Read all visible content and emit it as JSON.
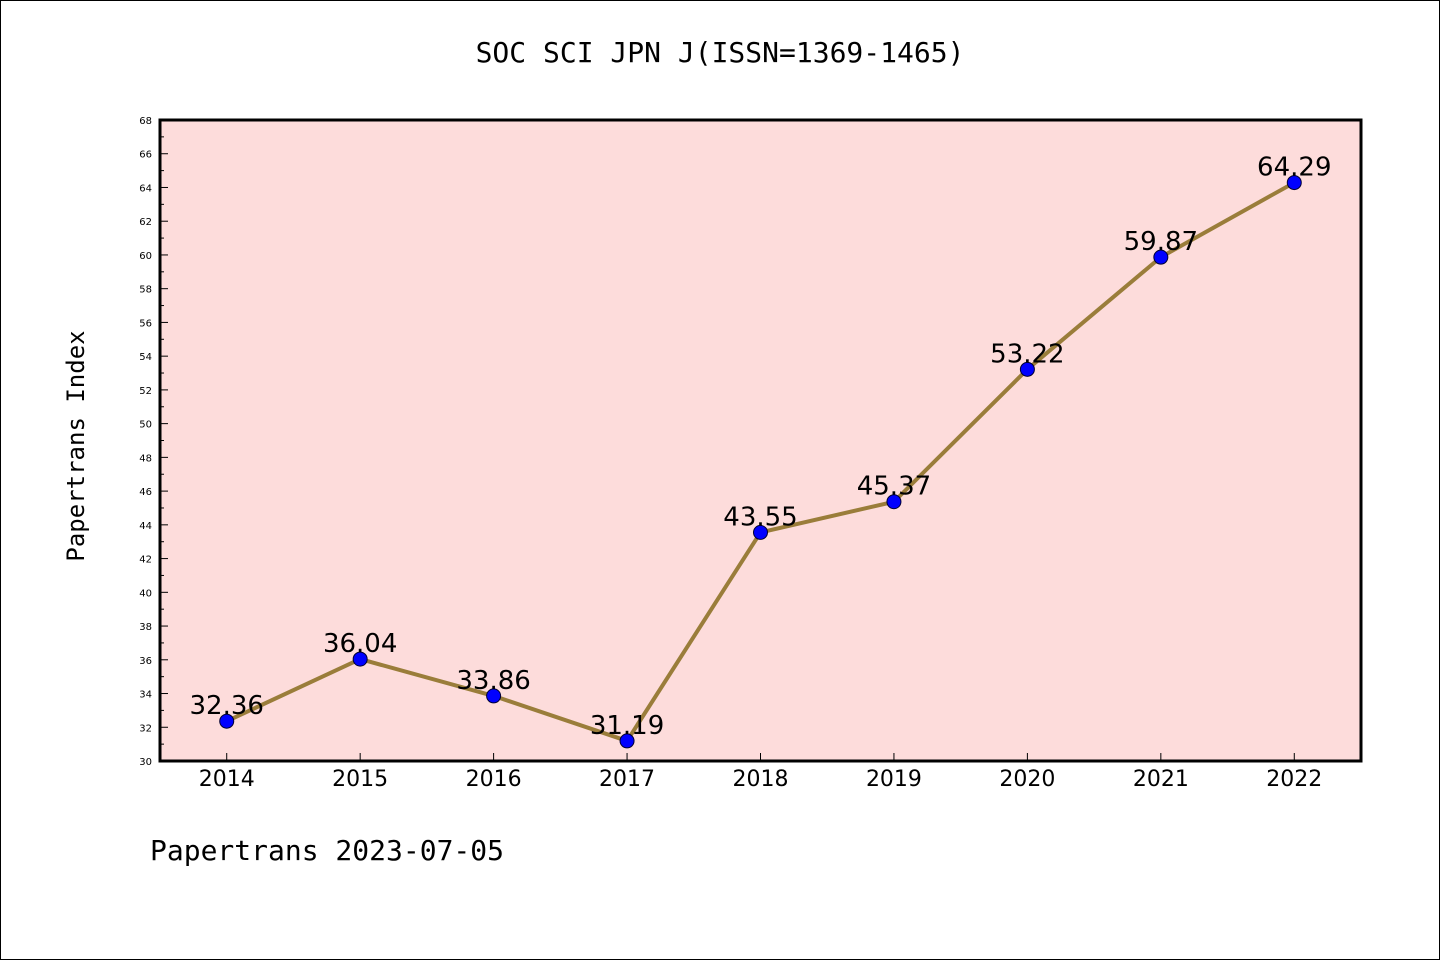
{
  "chart_data": {
    "type": "line",
    "title": "SOC SCI JPN J(ISSN=1369-1465)",
    "ylabel": "Papertrans Index",
    "xlabel": "",
    "x": [
      "2014",
      "2015",
      "2016",
      "2017",
      "2018",
      "2019",
      "2020",
      "2021",
      "2022"
    ],
    "series": [
      {
        "values": [
          32.36,
          36.04,
          33.86,
          31.19,
          43.55,
          45.37,
          53.22,
          59.87,
          64.29
        ],
        "data_labels": [
          "32.36",
          "36.04",
          "33.86",
          "31.19",
          "43.55",
          "45.37",
          "53.22",
          "59.87",
          "64.29"
        ]
      }
    ],
    "ylim": [
      30,
      68
    ],
    "yticks": [
      30,
      32,
      34,
      36,
      38,
      40,
      42,
      44,
      46,
      48,
      50,
      52,
      54,
      56,
      58,
      60,
      62,
      64,
      66,
      68
    ],
    "grid": false,
    "legend": "none",
    "colors": {
      "plot_background": "#fddcdb",
      "line": "#9a7d3a",
      "marker": "#0000ff"
    }
  },
  "footer": "Papertrans 2023-07-05"
}
